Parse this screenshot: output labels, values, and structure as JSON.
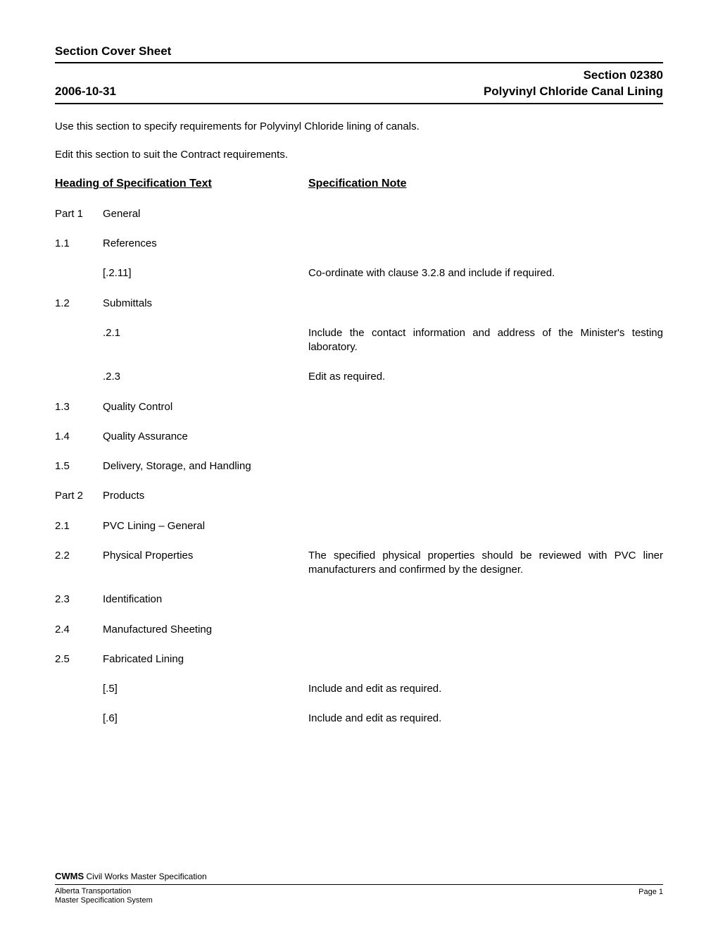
{
  "cover_title": "Section Cover Sheet",
  "header": {
    "date": "2006-10-31",
    "section_no": "Section 02380",
    "section_title": "Polyvinyl Chloride Canal Lining"
  },
  "intro": [
    "Use this section to specify requirements for Polyvinyl Chloride lining of canals.",
    "Edit this section to suit the Contract requirements."
  ],
  "column_headings": {
    "left": "Heading of Specification Text",
    "right": "Specification Note"
  },
  "rows": [
    {
      "num": "Part 1",
      "label": "General",
      "note": ""
    },
    {
      "num": "1.1",
      "label": "References",
      "note": ""
    },
    {
      "num": "",
      "label": "[.2.11]",
      "note": "Co-ordinate with clause 3.2.8 and include if required."
    },
    {
      "num": "1.2",
      "label": "Submittals",
      "note": ""
    },
    {
      "num": "",
      "label": ".2.1",
      "note": "Include the contact information and address of the Minister's testing laboratory."
    },
    {
      "num": "",
      "label": ".2.3",
      "note": "Edit as required."
    },
    {
      "num": "1.3",
      "label": "Quality Control",
      "note": ""
    },
    {
      "num": "1.4",
      "label": "Quality Assurance",
      "note": ""
    },
    {
      "num": "1.5",
      "label": "Delivery, Storage, and Handling",
      "note": ""
    },
    {
      "num": "Part 2",
      "label": "Products",
      "note": ""
    },
    {
      "num": "2.1",
      "label": "PVC Lining – General",
      "note": ""
    },
    {
      "num": "2.2",
      "label": "Physical Properties",
      "note": "The specified physical properties should be reviewed with PVC liner manufacturers and confirmed by the designer."
    },
    {
      "num": "2.3",
      "label": "Identification",
      "note": ""
    },
    {
      "num": "2.4",
      "label": "Manufactured Sheeting",
      "note": ""
    },
    {
      "num": "2.5",
      "label": "Fabricated Lining",
      "note": ""
    },
    {
      "num": "",
      "label": "[.5]",
      "note": "Include and edit as required."
    },
    {
      "num": "",
      "label": "[.6]",
      "note": "Include and edit as required."
    }
  ],
  "footer": {
    "cwms_bold": "CWMS",
    "cwms_rest": " Civil Works Master Specification",
    "org1": "Alberta Transportation",
    "org2": "Master Specification System",
    "page": "Page 1"
  }
}
